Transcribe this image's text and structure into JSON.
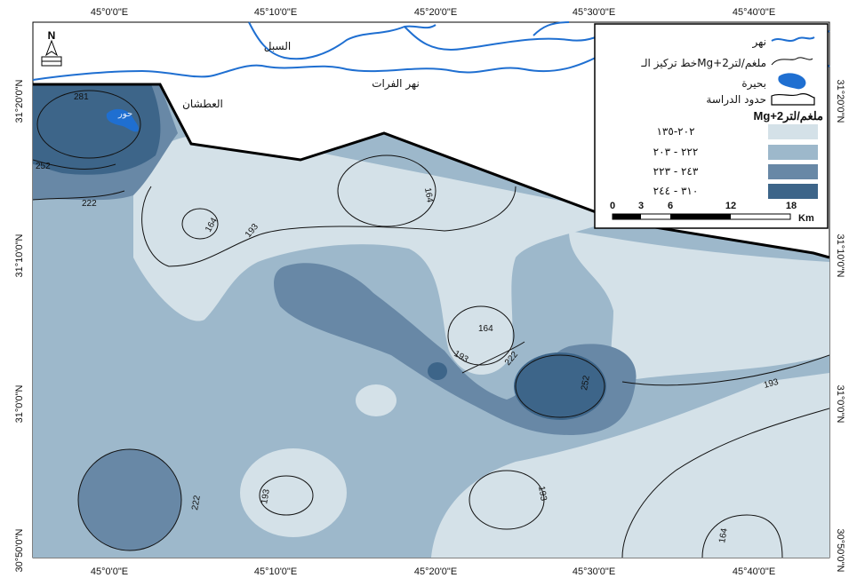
{
  "map": {
    "top_ticks": [
      "45°0'0\"E",
      "45°10'0\"E",
      "45°20'0\"E",
      "45°30'0\"E",
      "45°40'0\"E"
    ],
    "bottom_ticks": [
      "45°0'0\"E",
      "45°10'0\"E",
      "45°20'0\"E",
      "45°30'0\"E",
      "45°40'0\"E"
    ],
    "left_ticks": [
      "31°20'0\"N",
      "31°10'0\"N",
      "31°0'0\"N",
      "30°50'0\"N"
    ],
    "right_ticks": [
      "31°20'0\"N",
      "31°10'0\"N",
      "31°0'0\"N",
      "30°50'0\"N"
    ],
    "places": {
      "sabil": "السبل",
      "euphrates": "نهر الفرات",
      "atshan": "العطشان",
      "lake_label": "حور"
    },
    "north_arrow": "N",
    "contour_labels": [
      "281",
      "252",
      "222",
      "164",
      "193",
      "164",
      "164",
      "193",
      "222",
      "252",
      "193",
      "193",
      "222",
      "193",
      "164"
    ]
  },
  "legend": {
    "river": "نهر",
    "contour": "خط تركيز الـMg+2ملغم/لتر",
    "lake": "بحيرة",
    "boundary": "حدود الدراسة",
    "title": "Mg+2ملغم/لتر",
    "classes": [
      {
        "label": "٢٠٢-١٣٥",
        "color": "#d4e1e8"
      },
      {
        "label": "٢٢٢ - ٢٠٣",
        "color": "#9db8cb"
      },
      {
        "label": "٢٤٣ - ٢٢٣",
        "color": "#6888a6"
      },
      {
        "label": "٣١٠ - ٢٤٤",
        "color": "#3d6589"
      }
    ],
    "scale": {
      "ticks": [
        "0",
        "3",
        "6",
        "12",
        "18"
      ],
      "unit": "Km"
    }
  },
  "colors": {
    "river": "#1f6fd1",
    "boundary": "#000000"
  }
}
